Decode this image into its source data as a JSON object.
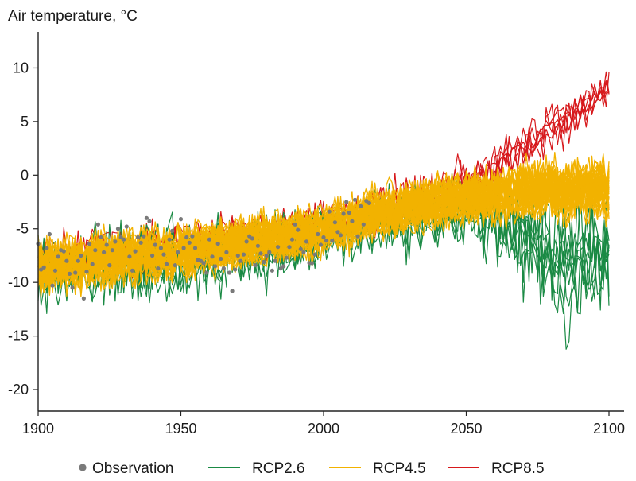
{
  "chart_data": {
    "type": "line",
    "title": "",
    "ylabel": "Air temperature, °C",
    "xlabel": "",
    "xlim": [
      1900,
      2100
    ],
    "ylim": [
      -22,
      13
    ],
    "xticks": [
      1900,
      1950,
      2000,
      2050,
      2100
    ],
    "xtick_labels": [
      "1900",
      "1950",
      "2000",
      "2050",
      "2100"
    ],
    "yticks": [
      10,
      5,
      0,
      -5,
      -10,
      -15,
      -20
    ],
    "ytick_labels": [
      "10",
      "5",
      "0",
      "-5",
      "-10",
      "-15",
      "-20"
    ],
    "legend_position": "bottom",
    "series": [
      {
        "name": "RCP8.5",
        "kind": "ensemble-lines",
        "color": "#d7191c",
        "ensemble_size": 6,
        "mean_points": [
          [
            1900,
            -8.5
          ],
          [
            1950,
            -7.2
          ],
          [
            2000,
            -5.2
          ],
          [
            2020,
            -3.6
          ],
          [
            2050,
            -1.5
          ],
          [
            2070,
            2.0
          ],
          [
            2090,
            5.5
          ],
          [
            2100,
            7.5
          ]
        ],
        "spread_points": [
          [
            1900,
            3.2
          ],
          [
            1950,
            3.0
          ],
          [
            2000,
            3.0
          ],
          [
            2050,
            3.4
          ],
          [
            2070,
            3.0
          ],
          [
            2100,
            3.2
          ]
        ]
      },
      {
        "name": "RCP2.6",
        "kind": "ensemble-lines",
        "color": "#1a8a44",
        "ensemble_size": 8,
        "mean_points": [
          [
            1900,
            -8.5
          ],
          [
            1950,
            -7.2
          ],
          [
            2000,
            -5.2
          ],
          [
            2020,
            -3.8
          ],
          [
            2050,
            -2.8
          ],
          [
            2070,
            -4.5
          ],
          [
            2085,
            -7.0
          ],
          [
            2100,
            -6.5
          ]
        ],
        "spread_points": [
          [
            1900,
            4.5
          ],
          [
            1950,
            4.8
          ],
          [
            2000,
            4.2
          ],
          [
            2050,
            4.0
          ],
          [
            2070,
            6.5
          ],
          [
            2085,
            8.5
          ],
          [
            2100,
            7.5
          ]
        ]
      },
      {
        "name": "RCP4.5",
        "kind": "ensemble-lines",
        "color": "#f2b200",
        "ensemble_size": 40,
        "mean_points": [
          [
            1900,
            -8.5
          ],
          [
            1950,
            -7.2
          ],
          [
            2000,
            -5.2
          ],
          [
            2020,
            -3.5
          ],
          [
            2050,
            -2.2
          ],
          [
            2070,
            -1.6
          ],
          [
            2100,
            -1.2
          ]
        ],
        "spread_points": [
          [
            1900,
            3.0
          ],
          [
            1950,
            2.9
          ],
          [
            2000,
            2.8
          ],
          [
            2050,
            3.0
          ],
          [
            2070,
            3.2
          ],
          [
            2100,
            3.4
          ]
        ]
      },
      {
        "name": "Observation",
        "kind": "points",
        "color": "#7a7a7a",
        "x": [
          1900,
          1901,
          1902,
          1903,
          1904,
          1905,
          1906,
          1907,
          1908,
          1909,
          1910,
          1911,
          1912,
          1913,
          1914,
          1915,
          1916,
          1917,
          1918,
          1919,
          1920,
          1921,
          1922,
          1923,
          1924,
          1925,
          1926,
          1927,
          1928,
          1929,
          1930,
          1931,
          1932,
          1933,
          1934,
          1935,
          1936,
          1937,
          1938,
          1939,
          1940,
          1941,
          1942,
          1943,
          1944,
          1945,
          1946,
          1947,
          1948,
          1949,
          1950,
          1951,
          1952,
          1953,
          1954,
          1955,
          1956,
          1957,
          1958,
          1959,
          1960,
          1961,
          1962,
          1963,
          1964,
          1965,
          1966,
          1967,
          1968,
          1969,
          1970,
          1971,
          1972,
          1973,
          1974,
          1975,
          1976,
          1977,
          1978,
          1979,
          1980,
          1981,
          1982,
          1983,
          1984,
          1985,
          1986,
          1987,
          1988,
          1989,
          1990,
          1991,
          1992,
          1993,
          1994,
          1995,
          1996,
          1997,
          1998,
          1999,
          2000,
          2001,
          2002,
          2003,
          2004,
          2005,
          2006,
          2007,
          2008,
          2009,
          2010,
          2011,
          2012,
          2013,
          2014,
          2015,
          2016
        ],
        "values": [
          -6.4,
          -8.8,
          -8.6,
          -6.8,
          -5.5,
          -10.3,
          -8.9,
          -7.6,
          -7.0,
          -7.1,
          -8.0,
          -9.2,
          -10.5,
          -9.1,
          -8.0,
          -7.5,
          -11.5,
          -9.0,
          -6.4,
          -8.3,
          -7.0,
          -4.6,
          -5.8,
          -7.2,
          -6.5,
          -8.4,
          -7.0,
          -6.2,
          -5.0,
          -5.8,
          -6.0,
          -4.8,
          -7.6,
          -8.9,
          -7.1,
          -5.8,
          -6.3,
          -5.7,
          -4.0,
          -4.3,
          -7.5,
          -6.5,
          -8.7,
          -6.8,
          -7.4,
          -8.3,
          -6.0,
          -5.2,
          -8.4,
          -7.2,
          -4.1,
          -6.8,
          -5.8,
          -6.3,
          -5.7,
          -6.8,
          -7.9,
          -8.0,
          -8.2,
          -9.1,
          -6.0,
          -7.6,
          -8.5,
          -6.4,
          -7.8,
          -8.7,
          -7.2,
          -9.1,
          -10.8,
          -8.8,
          -7.5,
          -8.0,
          -7.4,
          -6.2,
          -5.7,
          -5.9,
          -8.4,
          -6.6,
          -7.3,
          -8.1,
          -7.5,
          -7.2,
          -8.9,
          -8.0,
          -6.7,
          -8.7,
          -8.5,
          -7.7,
          -6.7,
          -6.0,
          -4.6,
          -5.1,
          -6.9,
          -7.2,
          -6.2,
          -8.2,
          -8.2,
          -7.4,
          -5.5,
          -6.5,
          -5.8,
          -6.1,
          -3.4,
          -6.1,
          -4.4,
          -5.3,
          -5.6,
          -3.6,
          -2.5,
          -3.5,
          -4.3,
          -2.3,
          -5.7,
          -2.9,
          -4.6,
          -2.4,
          -2.6
        ]
      }
    ]
  },
  "legend": {
    "items": [
      {
        "label": "Observation",
        "kind": "dot",
        "color": "#7a7a7a"
      },
      {
        "label": "RCP2.6",
        "kind": "line",
        "color": "#1a8a44"
      },
      {
        "label": "RCP4.5",
        "kind": "line",
        "color": "#f2b200"
      },
      {
        "label": "RCP8.5",
        "kind": "line",
        "color": "#d7191c"
      }
    ]
  }
}
